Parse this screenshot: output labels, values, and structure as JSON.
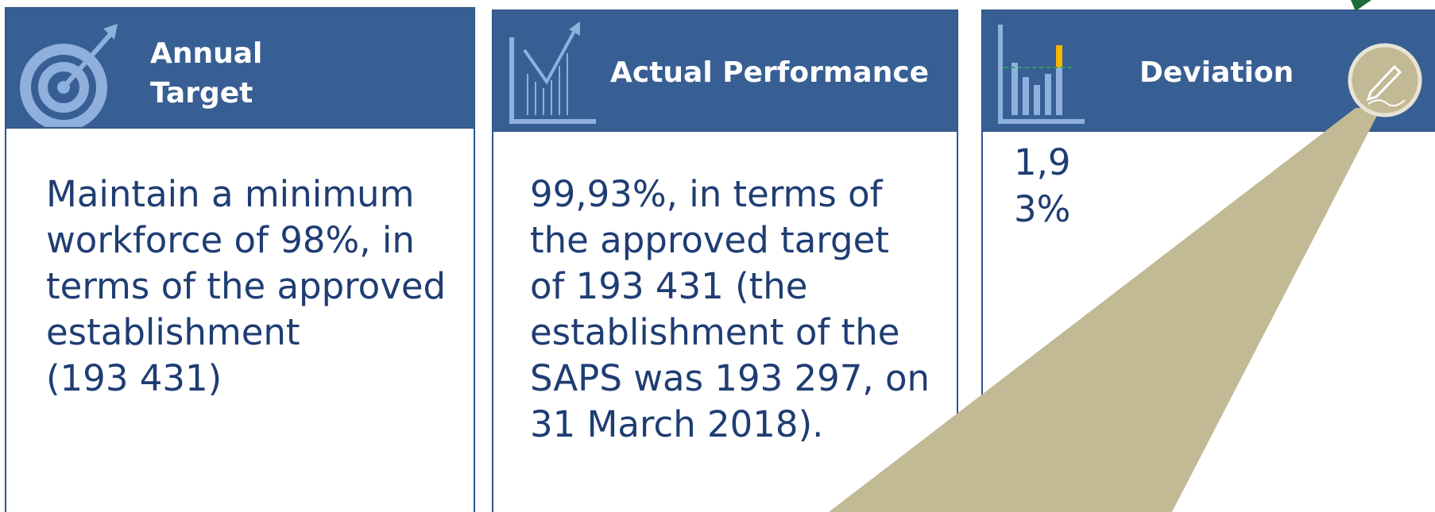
{
  "panels": [
    {
      "title": [
        "Annual",
        "Target"
      ],
      "body": [
        "Maintain a minimum",
        "workforce of 98%, in",
        "terms of the approved",
        "establishment",
        "(193 431)"
      ]
    },
    {
      "title": [
        "Actual Performance"
      ],
      "body": [
        "99,93%, in terms of",
        "the approved target",
        "of 193 431 (the",
        "establishment of the",
        "SAPS was 193 297, on",
        "31 March 2018)."
      ]
    },
    {
      "title": [
        "Deviation"
      ],
      "body": [
        "1,9",
        "3%"
      ]
    }
  ]
}
